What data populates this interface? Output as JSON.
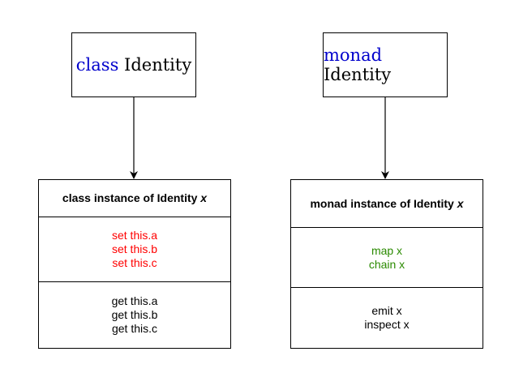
{
  "left": {
    "title_keyword": "class",
    "title_name": "Identity",
    "instance_header": "class instance of Identity",
    "instance_var": "x",
    "setters": [
      "set this.a",
      "set this.b",
      "set this.c"
    ],
    "getters": [
      "get this.a",
      "get this.b",
      "get this.c"
    ]
  },
  "right": {
    "title_keyword": "monad",
    "title_name": "Identity",
    "instance_header": "monad instance of Identity",
    "instance_var": "x",
    "methods": [
      "map x",
      "chain x"
    ],
    "outputs": [
      "emit x",
      "inspect x"
    ]
  },
  "colors": {
    "keyword": "#0000cc",
    "setter": "#ff0000",
    "method": "#2a8a00"
  }
}
